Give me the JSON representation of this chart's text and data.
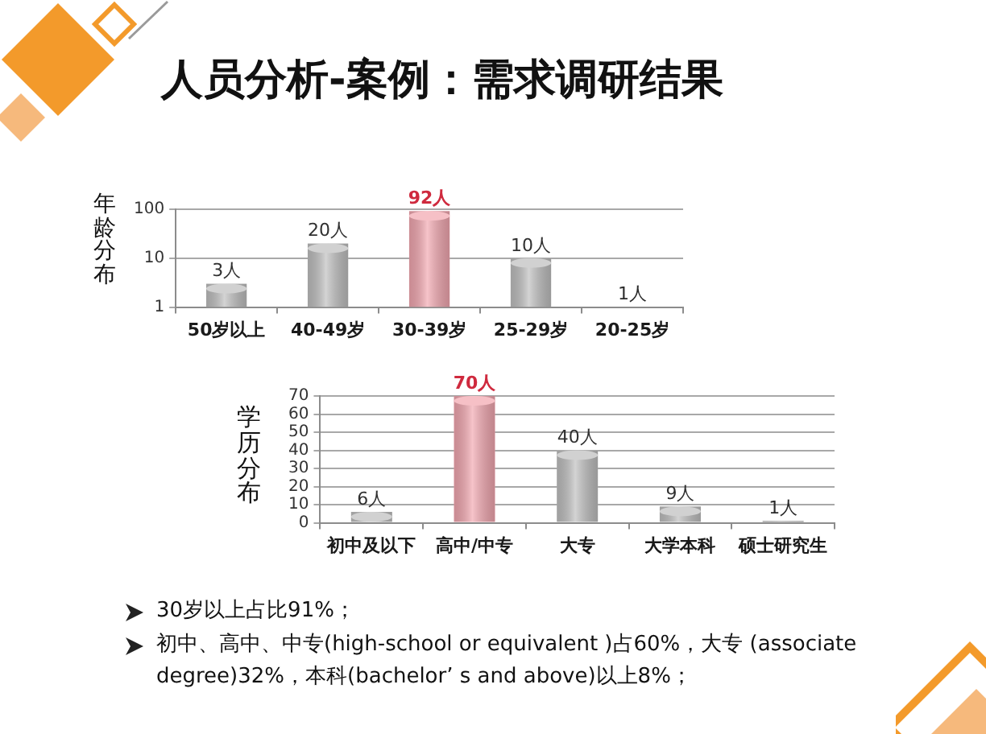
{
  "chart_data": [
    {
      "type": "bar",
      "title": "人员分析-案例：需求调研结果",
      "ylabel": "年龄分布",
      "categories": [
        "50岁以上",
        "40-49岁",
        "30-39岁",
        "25-29岁",
        "20-25岁"
      ],
      "values": [
        3,
        20,
        92,
        10,
        1
      ],
      "colors": [
        "#bfbfbf",
        "#bfbfbf",
        "#f2a7b0",
        "#bfbfbf",
        "#a6a6a6"
      ],
      "value_labels": [
        "3人",
        "20人",
        "92人",
        "10人",
        "1人"
      ],
      "log": true,
      "ylim": [
        1,
        100
      ],
      "yticks": [
        1,
        10,
        100
      ],
      "grid": "y"
    },
    {
      "type": "bar",
      "ylabel": "学历分布",
      "categories": [
        "初中及以下",
        "高中/中专",
        "大专",
        "大学本科",
        "硕士研究生"
      ],
      "values": [
        6,
        70,
        40,
        9,
        1
      ],
      "colors": [
        "#bfbfbf",
        "#f2a7b0",
        "#bfbfbf",
        "#bfbfbf",
        "#a6a6a6"
      ],
      "value_labels": [
        "6人",
        "70人",
        "40人",
        "9人",
        "1人"
      ],
      "ylim": [
        0,
        70
      ],
      "yticks": [
        0,
        10,
        20,
        30,
        40,
        50,
        60,
        70
      ],
      "grid": "y",
      "annotations": [
        "30岁以上占比91%；",
        "初中、高中、中专(high-school or equivalent )占60%，大专 (associate degree)32%，本科(bachelor’ s and above)以上8%；"
      ]
    }
  ]
}
